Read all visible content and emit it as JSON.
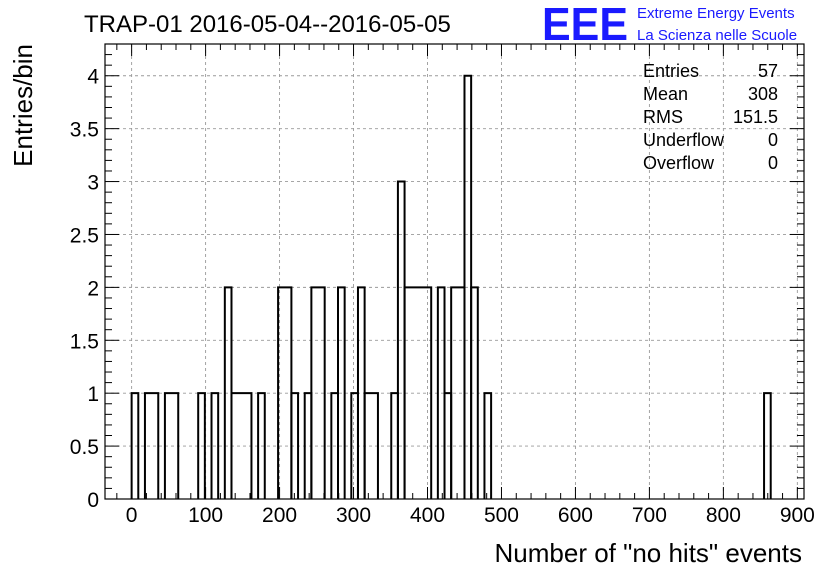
{
  "title": "TRAP-01 2016-05-04--2016-05-05",
  "logo": {
    "mark": "EEE",
    "line1": "Extreme Energy Events",
    "line2": "La Scienza nelle Scuole",
    "color": "#1a1aff"
  },
  "stats": [
    {
      "label": "Entries",
      "value": "57"
    },
    {
      "label": "Mean",
      "value": "308"
    },
    {
      "label": "RMS",
      "value": "151.5"
    },
    {
      "label": "Underflow",
      "value": "0"
    },
    {
      "label": "Overflow",
      "value": "0"
    }
  ],
  "chart_data": {
    "type": "bar",
    "style": "step-histogram",
    "title": "TRAP-01 2016-05-04--2016-05-05",
    "xlabel": "Number of \"no hits\" events",
    "ylabel": "Entries/bin",
    "xlim": [
      -36,
      909
    ],
    "ylim": [
      0,
      4.3
    ],
    "bin_width": 9,
    "grid": true,
    "xticks": [
      0,
      100,
      200,
      300,
      400,
      500,
      600,
      700,
      800,
      900
    ],
    "yticks": [
      0,
      0.5,
      1,
      1.5,
      2,
      2.5,
      3,
      3.5,
      4
    ],
    "ytick_labels": [
      "0",
      "0.5",
      "1",
      "1.5",
      "2",
      "2.5",
      "3",
      "3.5",
      "4"
    ],
    "bins": [
      {
        "x0": 0,
        "x1": 9,
        "y": 1
      },
      {
        "x0": 18,
        "x1": 36,
        "y": 1
      },
      {
        "x0": 45,
        "x1": 63,
        "y": 1
      },
      {
        "x0": 90,
        "x1": 99,
        "y": 1
      },
      {
        "x0": 108,
        "x1": 117,
        "y": 1
      },
      {
        "x0": 126,
        "x1": 135,
        "y": 2
      },
      {
        "x0": 135,
        "x1": 162,
        "y": 1
      },
      {
        "x0": 171,
        "x1": 180,
        "y": 1
      },
      {
        "x0": 198,
        "x1": 216,
        "y": 2
      },
      {
        "x0": 216,
        "x1": 225,
        "y": 1
      },
      {
        "x0": 234,
        "x1": 243,
        "y": 1
      },
      {
        "x0": 243,
        "x1": 261,
        "y": 2
      },
      {
        "x0": 270,
        "x1": 279,
        "y": 1
      },
      {
        "x0": 279,
        "x1": 288,
        "y": 2
      },
      {
        "x0": 297,
        "x1": 306,
        "y": 1
      },
      {
        "x0": 306,
        "x1": 315,
        "y": 2
      },
      {
        "x0": 315,
        "x1": 333,
        "y": 1
      },
      {
        "x0": 351,
        "x1": 360,
        "y": 1
      },
      {
        "x0": 360,
        "x1": 369,
        "y": 3
      },
      {
        "x0": 369,
        "x1": 405,
        "y": 2
      },
      {
        "x0": 414,
        "x1": 423,
        "y": 2
      },
      {
        "x0": 423,
        "x1": 432,
        "y": 1
      },
      {
        "x0": 432,
        "x1": 450,
        "y": 2
      },
      {
        "x0": 450,
        "x1": 459,
        "y": 4
      },
      {
        "x0": 459,
        "x1": 468,
        "y": 2
      },
      {
        "x0": 477,
        "x1": 486,
        "y": 1
      },
      {
        "x0": 855,
        "x1": 864,
        "y": 1
      }
    ]
  }
}
